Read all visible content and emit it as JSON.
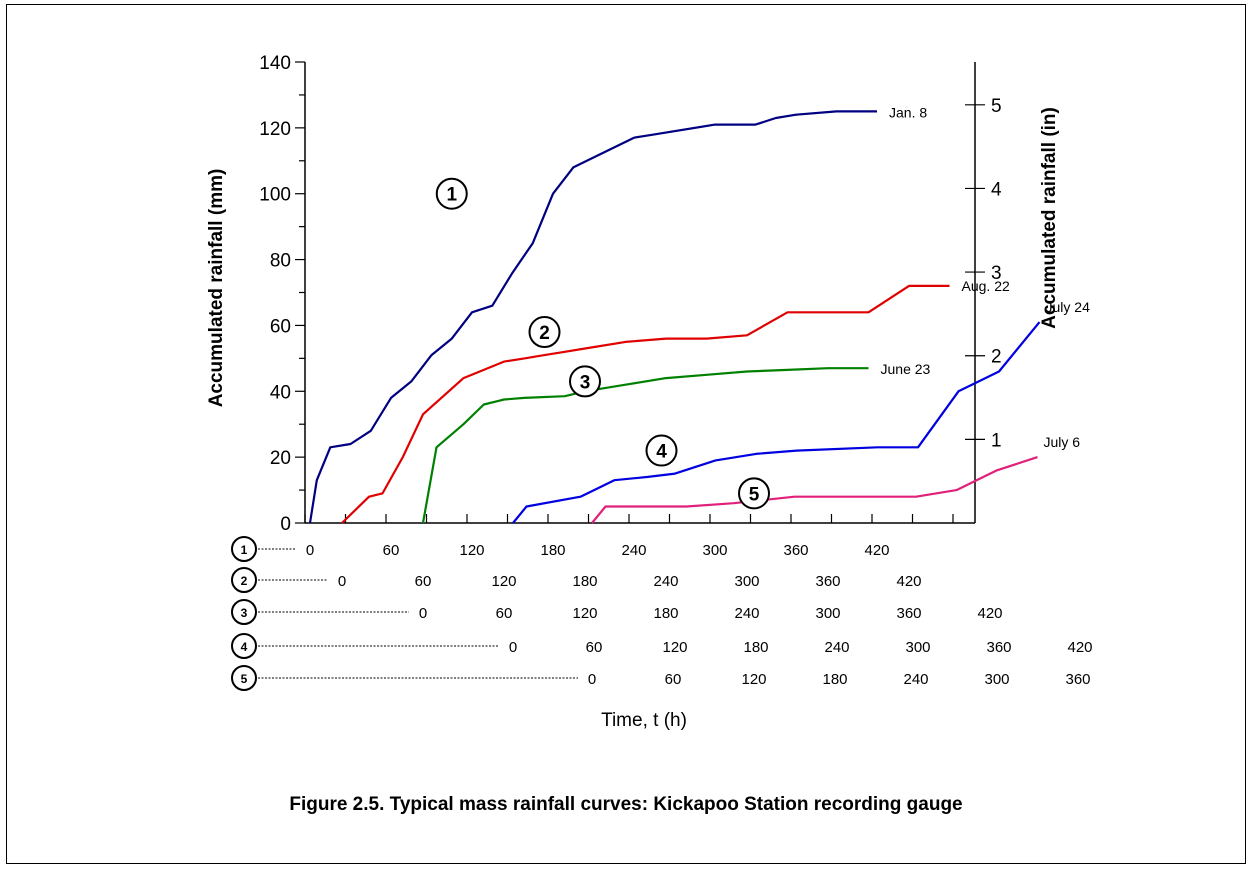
{
  "caption": "Figure 2.5. Typical mass rainfall curves: Kickapoo Station recording gauge",
  "chart_data": {
    "type": "line",
    "title": "",
    "ylabel": "Accumulated rainfall (mm)",
    "y2label": "Accumulated rainfall (in)",
    "xlabel": "Time, t (h)",
    "ylim": [
      0,
      140
    ],
    "yticks": [
      "0",
      "20",
      "40",
      "60",
      "80",
      "100",
      "120",
      "140"
    ],
    "y2ticks": [
      "1",
      "2",
      "3",
      "4",
      "5"
    ],
    "y2tick_values": [
      1,
      2,
      3,
      4,
      5
    ],
    "grid": false,
    "series": [
      {
        "marker": "1",
        "label": "Jan. 8",
        "color": "#000080",
        "x_axis_row": [
          "0",
          "60",
          "120",
          "180",
          "240",
          "300",
          "360",
          "420"
        ],
        "x": [
          0,
          5,
          15,
          30,
          45,
          60,
          75,
          90,
          105,
          120,
          135,
          150,
          165,
          180,
          195,
          210,
          240,
          255,
          300,
          330,
          345,
          360,
          390,
          420
        ],
        "y": [
          0,
          13,
          23,
          24,
          28,
          38,
          43,
          51,
          56,
          64,
          66,
          76,
          85,
          100,
          108,
          111,
          117,
          118,
          121,
          121,
          123,
          124,
          125,
          125
        ]
      },
      {
        "marker": "2",
        "label": "Aug. 22",
        "color": "#e00000",
        "x_axis_row": [
          "0",
          "60",
          "120",
          "180",
          "240",
          "300",
          "360",
          "420"
        ],
        "x": [
          0,
          20,
          30,
          45,
          60,
          90,
          120,
          135,
          150,
          165,
          180,
          210,
          240,
          270,
          300,
          330,
          360,
          390,
          420,
          450
        ],
        "y": [
          0,
          8,
          9,
          20,
          33,
          44,
          49,
          50,
          51,
          52,
          53,
          55,
          56,
          56,
          57,
          64,
          64,
          64,
          72,
          72
        ]
      },
      {
        "marker": "3",
        "label": "June 23",
        "color": "#008000",
        "x_axis_row": [
          "0",
          "60",
          "120",
          "180",
          "240",
          "300",
          "360",
          "420"
        ],
        "x": [
          0,
          10,
          30,
          45,
          55,
          60,
          75,
          105,
          120,
          150,
          180,
          210,
          240,
          270,
          300,
          330
        ],
        "y": [
          0,
          23,
          30,
          36,
          37,
          37.5,
          38,
          38.5,
          40,
          42,
          44,
          45,
          46,
          46.5,
          47,
          47
        ]
      },
      {
        "marker": "4",
        "label": "July 24",
        "color": "#0000e0",
        "x_axis_row": [
          "0",
          "60",
          "120",
          "180",
          "240",
          "300",
          "360",
          "420"
        ],
        "x": [
          0,
          10,
          50,
          75,
          100,
          120,
          150,
          180,
          210,
          270,
          300,
          330,
          360,
          390
        ],
        "y": [
          0,
          5,
          8,
          13,
          14,
          15,
          19,
          21,
          22,
          23,
          23,
          40,
          46,
          61
        ]
      },
      {
        "marker": "5",
        "label": "July 6",
        "color": "#e0207a",
        "x_axis_row": [
          "0",
          "60",
          "120",
          "180",
          "240",
          "300",
          "360"
        ],
        "x": [
          0,
          10,
          70,
          105,
          150,
          180,
          210,
          240,
          270,
          300,
          330
        ],
        "y": [
          0,
          5,
          5,
          6,
          8,
          8,
          8,
          8,
          10,
          16,
          20
        ]
      }
    ]
  }
}
